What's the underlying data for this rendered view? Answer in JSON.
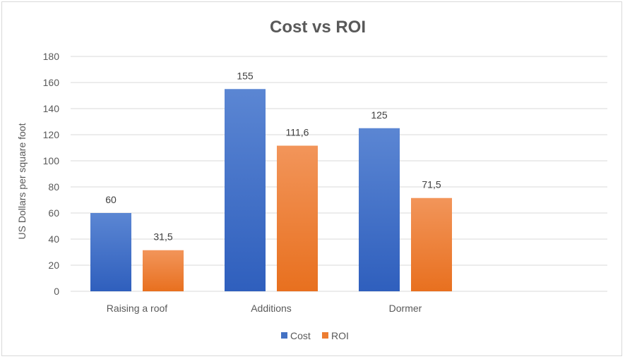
{
  "chart_data": {
    "type": "bar",
    "title": "Cost vs ROI",
    "xlabel": "",
    "ylabel": "US Dollars per square foot",
    "categories": [
      "Raising a roof",
      "Additions",
      "Dormer"
    ],
    "series": [
      {
        "name": "Cost",
        "values": [
          60,
          155,
          125
        ],
        "labels": [
          "60",
          "155",
          "125"
        ],
        "color": "#4472c4"
      },
      {
        "name": "ROI",
        "values": [
          31.5,
          111.6,
          71.5
        ],
        "labels": [
          "31,5",
          "111,6",
          "71,5"
        ],
        "color": "#ed7d31"
      }
    ],
    "ylim": [
      0,
      180
    ],
    "yticks": [
      0,
      20,
      40,
      60,
      80,
      100,
      120,
      140,
      160,
      180
    ],
    "grid": true,
    "legend": "bottom"
  }
}
